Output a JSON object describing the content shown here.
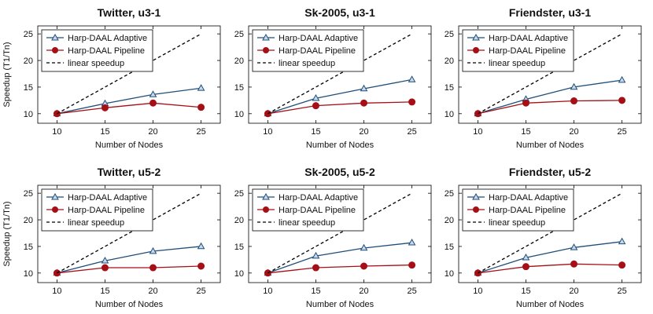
{
  "chart_data": [
    {
      "type": "line",
      "title": "Twitter, u3-1",
      "xlabel": "Number of Nodes",
      "ylabel": "Speedup (T1/Tn)",
      "x": [
        10,
        15,
        20,
        25
      ],
      "xlim": [
        8,
        27
      ],
      "ylim": [
        8.2,
        26.5
      ],
      "yticks": [
        10,
        15,
        20,
        25
      ],
      "grid": false,
      "legend": "top-left",
      "series": [
        {
          "name": "Harp-DAAL Adaptive",
          "values": [
            10,
            11.9,
            13.6,
            14.8
          ],
          "color": "#1f4e79",
          "marker": "triangle"
        },
        {
          "name": "Harp-DAAL Pipeline",
          "values": [
            10,
            11.1,
            12.0,
            11.2
          ],
          "color": "#a50f15",
          "marker": "circle"
        },
        {
          "name": "linear speedup",
          "values": [
            10,
            15,
            20,
            25
          ],
          "color": "#000000",
          "marker": "none",
          "dashed": true
        }
      ]
    },
    {
      "type": "line",
      "title": "Sk-2005, u3-1",
      "xlabel": "Number of Nodes",
      "ylabel": "",
      "x": [
        10,
        15,
        20,
        25
      ],
      "xlim": [
        8,
        27
      ],
      "ylim": [
        8.2,
        26.5
      ],
      "yticks": [
        10,
        15,
        20,
        25
      ],
      "grid": false,
      "legend": "top-left",
      "series": [
        {
          "name": "Harp-DAAL Adaptive",
          "values": [
            10,
            12.9,
            14.7,
            16.4
          ],
          "color": "#1f4e79",
          "marker": "triangle"
        },
        {
          "name": "Harp-DAAL Pipeline",
          "values": [
            10,
            11.5,
            12.0,
            12.2
          ],
          "color": "#a50f15",
          "marker": "circle"
        },
        {
          "name": "linear speedup",
          "values": [
            10,
            15,
            20,
            25
          ],
          "color": "#000000",
          "marker": "none",
          "dashed": true
        }
      ]
    },
    {
      "type": "line",
      "title": "Friendster, u3-1",
      "xlabel": "Number of Nodes",
      "ylabel": "",
      "x": [
        10,
        15,
        20,
        25
      ],
      "xlim": [
        8,
        27
      ],
      "ylim": [
        8.2,
        26.5
      ],
      "yticks": [
        10,
        15,
        20,
        25
      ],
      "grid": false,
      "legend": "top-left",
      "series": [
        {
          "name": "Harp-DAAL Adaptive",
          "values": [
            10,
            12.7,
            15.0,
            16.3
          ],
          "color": "#1f4e79",
          "marker": "triangle"
        },
        {
          "name": "Harp-DAAL Pipeline",
          "values": [
            10,
            12.0,
            12.4,
            12.5
          ],
          "color": "#a50f15",
          "marker": "circle"
        },
        {
          "name": "linear speedup",
          "values": [
            10,
            15,
            20,
            25
          ],
          "color": "#000000",
          "marker": "none",
          "dashed": true
        }
      ]
    },
    {
      "type": "line",
      "title": "Twitter, u5-2",
      "xlabel": "Number of Nodes",
      "ylabel": "Speedup (T1/Tn)",
      "x": [
        10,
        15,
        20,
        25
      ],
      "xlim": [
        8,
        27
      ],
      "ylim": [
        8.2,
        26.5
      ],
      "yticks": [
        10,
        15,
        20,
        25
      ],
      "grid": false,
      "legend": "top-left",
      "series": [
        {
          "name": "Harp-DAAL Adaptive",
          "values": [
            10,
            12.3,
            14.1,
            15.0
          ],
          "color": "#1f4e79",
          "marker": "triangle"
        },
        {
          "name": "Harp-DAAL Pipeline",
          "values": [
            10,
            11.0,
            11.0,
            11.3
          ],
          "color": "#a50f15",
          "marker": "circle"
        },
        {
          "name": "linear speedup",
          "values": [
            10,
            15,
            20,
            25
          ],
          "color": "#000000",
          "marker": "none",
          "dashed": true
        }
      ]
    },
    {
      "type": "line",
      "title": "Sk-2005, u5-2",
      "xlabel": "Number of Nodes",
      "ylabel": "",
      "x": [
        10,
        15,
        20,
        25
      ],
      "xlim": [
        8,
        27
      ],
      "ylim": [
        8.2,
        26.5
      ],
      "yticks": [
        10,
        15,
        20,
        25
      ],
      "grid": false,
      "legend": "top-left",
      "series": [
        {
          "name": "Harp-DAAL Adaptive",
          "values": [
            10,
            13.2,
            14.7,
            15.7
          ],
          "color": "#1f4e79",
          "marker": "triangle"
        },
        {
          "name": "Harp-DAAL Pipeline",
          "values": [
            10,
            11.0,
            11.3,
            11.5
          ],
          "color": "#a50f15",
          "marker": "circle"
        },
        {
          "name": "linear speedup",
          "values": [
            10,
            15,
            20,
            25
          ],
          "color": "#000000",
          "marker": "none",
          "dashed": true
        }
      ]
    },
    {
      "type": "line",
      "title": "Friendster, u5-2",
      "xlabel": "Number of Nodes",
      "ylabel": "",
      "x": [
        10,
        15,
        20,
        25
      ],
      "xlim": [
        8,
        27
      ],
      "ylim": [
        8.2,
        26.5
      ],
      "yticks": [
        10,
        15,
        20,
        25
      ],
      "grid": false,
      "legend": "top-left",
      "series": [
        {
          "name": "Harp-DAAL Adaptive",
          "values": [
            10,
            12.9,
            14.8,
            15.9
          ],
          "color": "#1f4e79",
          "marker": "triangle"
        },
        {
          "name": "Harp-DAAL Pipeline",
          "values": [
            10,
            11.2,
            11.7,
            11.5
          ],
          "color": "#a50f15",
          "marker": "circle"
        },
        {
          "name": "linear speedup",
          "values": [
            10,
            15,
            20,
            25
          ],
          "color": "#000000",
          "marker": "none",
          "dashed": true
        }
      ]
    }
  ]
}
